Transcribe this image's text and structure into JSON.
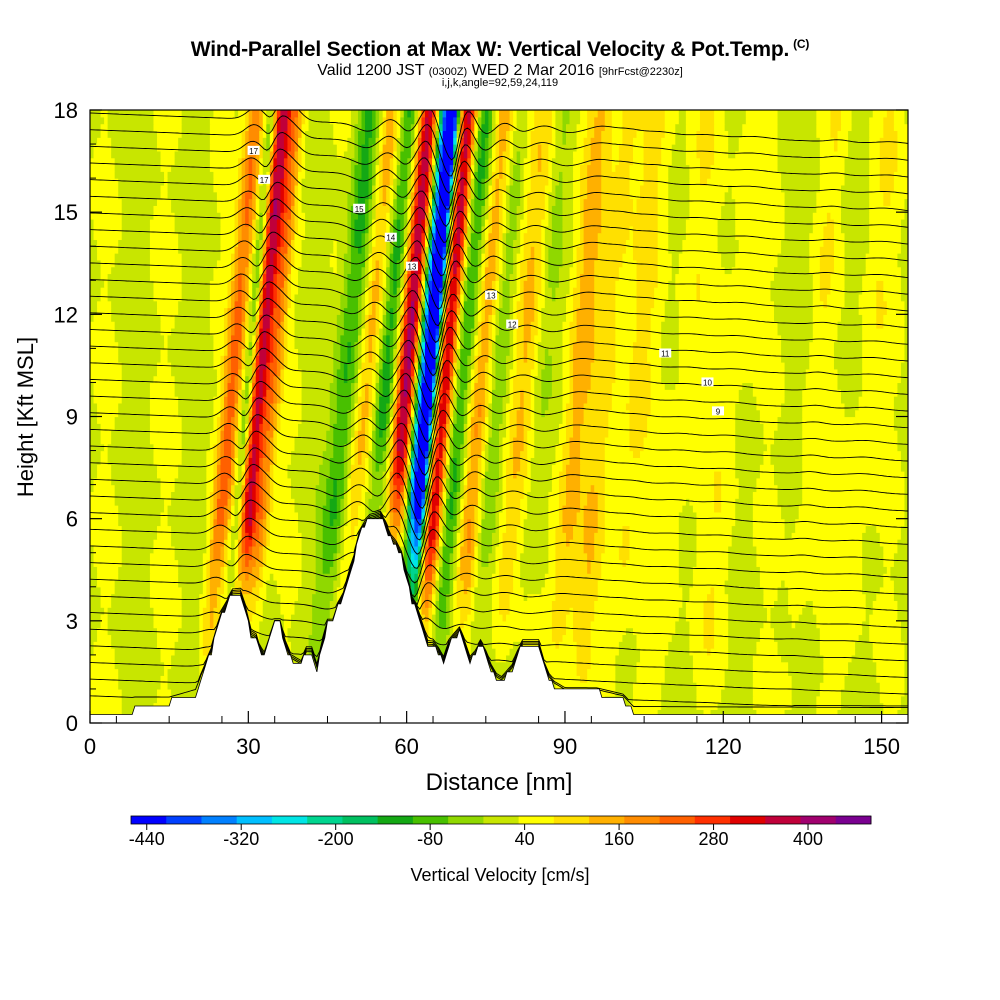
{
  "title": {
    "main": "Wind-Parallel Section at Max W: Vertical Velocity & Pot.Temp.",
    "copyright": "(C)",
    "valid_prefix": "Valid 1200 JST",
    "valid_utc": "(0300Z)",
    "valid_date": "WED 2 Mar 2016",
    "forecast": "[9hrFcst@2230z]",
    "params": "i,j,k,angle=92,59,24,119"
  },
  "chart_data": {
    "type": "heatmap",
    "xlabel": "Distance [nm]",
    "ylabel": "Height [Kft MSL]",
    "xlim": [
      0,
      155
    ],
    "ylim": [
      0,
      18
    ],
    "x_ticks": [
      0,
      30,
      60,
      90,
      120,
      150
    ],
    "y_ticks": [
      0,
      3,
      6,
      9,
      12,
      15,
      18
    ],
    "colorbar": {
      "label": "Vertical Velocity [cm/s]",
      "tick_labels": [
        "-440",
        "-320",
        "-200",
        "-80",
        "40",
        "160",
        "280",
        "400"
      ],
      "tick_values": [
        -440,
        -320,
        -200,
        -80,
        40,
        160,
        280,
        400
      ],
      "min": -460,
      "max": 480,
      "colors": [
        "#0000ff",
        "#0040ff",
        "#0080ff",
        "#00bfff",
        "#00e5e5",
        "#00d58f",
        "#00c060",
        "#14a814",
        "#48c000",
        "#90d800",
        "#c8e600",
        "#ffff00",
        "#ffe000",
        "#ffb000",
        "#ff8c00",
        "#ff6000",
        "#ff3000",
        "#e00000",
        "#c0003a",
        "#a0006e",
        "#7a0090"
      ]
    },
    "velocity_bands": [
      {
        "x": 26.5,
        "w": 1.8,
        "v": 200,
        "top": 18
      },
      {
        "x": 29.5,
        "w": 1.0,
        "v": -110,
        "top": 18
      },
      {
        "x": 31.6,
        "w": 1.7,
        "v": 340,
        "top": 18
      },
      {
        "x": 34.2,
        "w": 1.6,
        "v": 150,
        "top": 18
      },
      {
        "x": 48.0,
        "w": 2.4,
        "v": -140,
        "top": 18
      },
      {
        "x": 52.0,
        "w": 2.0,
        "v": 130,
        "top": 18
      },
      {
        "x": 55.6,
        "w": 1.8,
        "v": -150,
        "top": 18
      },
      {
        "x": 59.4,
        "w": 1.9,
        "v": 360,
        "top": 18
      },
      {
        "x": 62.8,
        "w": 1.6,
        "v": -440,
        "top": 18
      },
      {
        "x": 64.2,
        "w": 1.0,
        "v": -310,
        "top": 18
      },
      {
        "x": 66.8,
        "w": 1.6,
        "v": 330,
        "top": 18
      },
      {
        "x": 70.2,
        "w": 2.0,
        "v": -150,
        "top": 18
      },
      {
        "x": 73.5,
        "w": 2.2,
        "v": 140,
        "top": 18
      },
      {
        "x": 76.8,
        "w": 1.8,
        "v": -70,
        "top": 18
      },
      {
        "x": 81.5,
        "w": 2.5,
        "v": 90,
        "top": 18
      },
      {
        "x": 85.0,
        "w": 2.0,
        "v": -40,
        "top": 18
      },
      {
        "x": 92.0,
        "w": 2.5,
        "v": 110,
        "top": 18
      },
      {
        "x": 97.0,
        "w": 2.5,
        "v": 80,
        "top": 18
      },
      {
        "x": 103.0,
        "w": 3.0,
        "v": 60,
        "top": 18
      },
      {
        "x": 112.0,
        "w": 3.0,
        "v": 40,
        "top": 18
      },
      {
        "x": 121.0,
        "w": 3.0,
        "v": 40,
        "top": 18
      },
      {
        "x": 137.0,
        "w": 2.0,
        "v": 40,
        "top": 18
      },
      {
        "x": 147.0,
        "w": 3.0,
        "v": 40,
        "top": 18
      }
    ],
    "terrain": [
      [
        0,
        0.35
      ],
      [
        8,
        0.35
      ],
      [
        8,
        0.6
      ],
      [
        15,
        0.6
      ],
      [
        16,
        0.65
      ],
      [
        20,
        0.85
      ],
      [
        21,
        1.3
      ],
      [
        22,
        1.7
      ],
      [
        23,
        2.1
      ],
      [
        24,
        2.7
      ],
      [
        25,
        3.2
      ],
      [
        26,
        3.5
      ],
      [
        27,
        3.8
      ],
      [
        28.5,
        3.8
      ],
      [
        29.5,
        3.3
      ],
      [
        30.5,
        2.6
      ],
      [
        31.5,
        2.5
      ],
      [
        32,
        2.2
      ],
      [
        33,
        1.9
      ],
      [
        34,
        2.4
      ],
      [
        35,
        2.9
      ],
      [
        36,
        2.9
      ],
      [
        37,
        2.3
      ],
      [
        38,
        1.9
      ],
      [
        40,
        1.7
      ],
      [
        41,
        2.1
      ],
      [
        42,
        2.1
      ],
      [
        43,
        1.6
      ],
      [
        44,
        2.3
      ],
      [
        45,
        2.9
      ],
      [
        46,
        2.9
      ],
      [
        47,
        3.4
      ],
      [
        48,
        3.7
      ],
      [
        49,
        4.3
      ],
      [
        50,
        4.8
      ],
      [
        51,
        5.5
      ],
      [
        52,
        5.8
      ],
      [
        53,
        6.0
      ],
      [
        55,
        6.1
      ],
      [
        56,
        5.8
      ],
      [
        57,
        5.4
      ],
      [
        58,
        5.2
      ],
      [
        59,
        4.9
      ],
      [
        60,
        4.3
      ],
      [
        61,
        3.6
      ],
      [
        62,
        3.3
      ],
      [
        63,
        2.8
      ],
      [
        64,
        2.3
      ],
      [
        65,
        2.3
      ],
      [
        66,
        2.1
      ],
      [
        67,
        1.8
      ],
      [
        68,
        2.3
      ],
      [
        70,
        2.7
      ],
      [
        71,
        2.3
      ],
      [
        72,
        1.8
      ],
      [
        73,
        2.0
      ],
      [
        74,
        2.3
      ],
      [
        75,
        2.0
      ],
      [
        76,
        1.6
      ],
      [
        77,
        1.3
      ],
      [
        78,
        1.2
      ],
      [
        80,
        1.6
      ],
      [
        81,
        2.0
      ],
      [
        82,
        2.3
      ],
      [
        85,
        2.3
      ],
      [
        86,
        1.7
      ],
      [
        87,
        1.3
      ],
      [
        88,
        1.1
      ],
      [
        90,
        0.9
      ],
      [
        96,
        0.9
      ],
      [
        101,
        0.7
      ],
      [
        103,
        0.35
      ],
      [
        155,
        0.35
      ]
    ],
    "contour_levels": 36,
    "contour_labels": [
      "17",
      "17",
      "15",
      "14",
      "13",
      "13",
      "12",
      "11",
      "10",
      "9"
    ]
  },
  "axis_labels": {
    "x_title": "Distance [nm]",
    "y_title": "Height [Kft MSL]"
  }
}
